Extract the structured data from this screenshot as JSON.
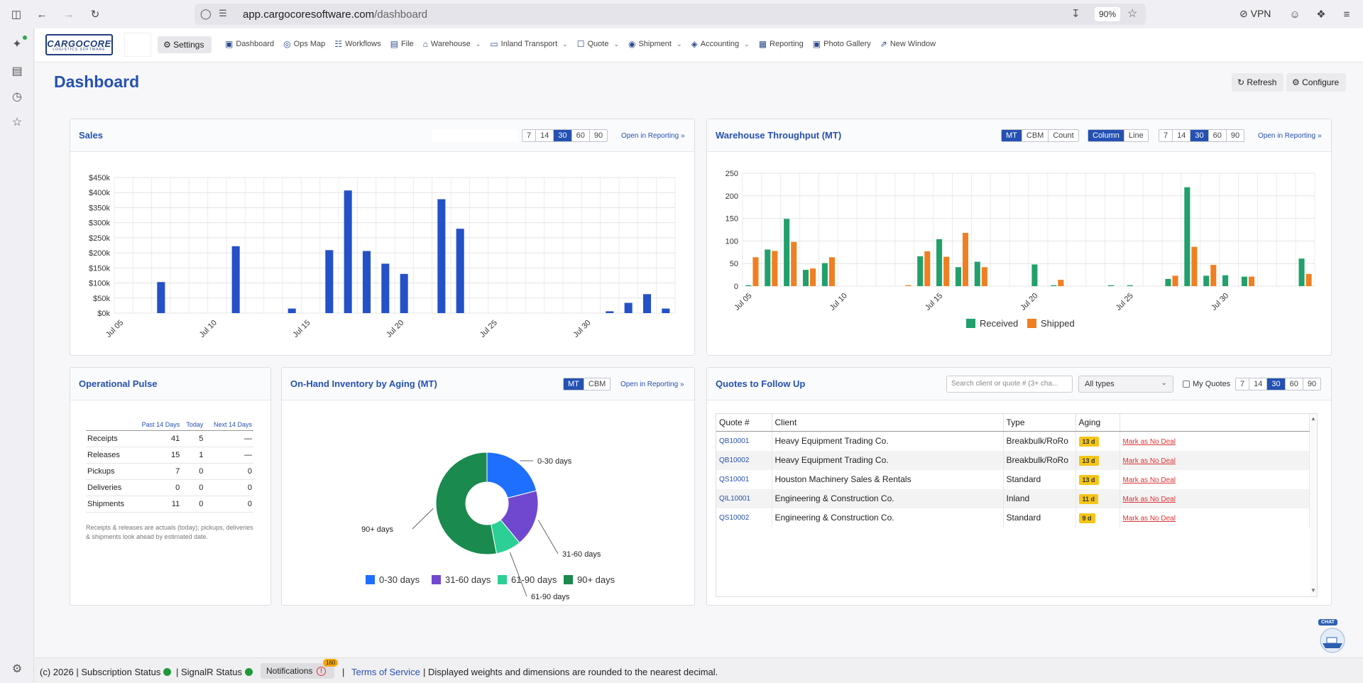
{
  "browser": {
    "url_host": "app.cargocoresoftware.com",
    "url_path": "/dashboard",
    "zoom": "90%",
    "vpn_label": "VPN"
  },
  "nav": {
    "logo_main": "CARGOCORE",
    "logo_sub": "LOGISTICS SOFTWARE",
    "settings_label": "Settings",
    "items": [
      {
        "label": "Dashboard",
        "icon": "monitor-icon",
        "dropdown": false
      },
      {
        "label": "Ops Map",
        "icon": "globe-icon",
        "dropdown": false
      },
      {
        "label": "Workflows",
        "icon": "workflow-icon",
        "dropdown": false
      },
      {
        "label": "File",
        "icon": "file-icon",
        "dropdown": false
      },
      {
        "label": "Warehouse",
        "icon": "warehouse-icon",
        "dropdown": true
      },
      {
        "label": "Inland Transport",
        "icon": "truck-icon",
        "dropdown": true
      },
      {
        "label": "Quote",
        "icon": "quote-icon",
        "dropdown": true
      },
      {
        "label": "Shipment",
        "icon": "ship-icon",
        "dropdown": true
      },
      {
        "label": "Accounting",
        "icon": "accounting-icon",
        "dropdown": true
      },
      {
        "label": "Reporting",
        "icon": "report-icon",
        "dropdown": false
      },
      {
        "label": "Photo Gallery",
        "icon": "camera-icon",
        "dropdown": false
      },
      {
        "label": "New Window",
        "icon": "external-icon",
        "dropdown": false
      }
    ]
  },
  "page": {
    "title": "Dashboard",
    "refresh_label": "Refresh",
    "configure_label": "Configure"
  },
  "sales": {
    "title": "Sales",
    "ranges": [
      "7",
      "14",
      "30",
      "60",
      "90"
    ],
    "active_range": "30",
    "open_link": "Open in Reporting »"
  },
  "warehouse": {
    "title": "Warehouse Throughput (MT)",
    "units": [
      "MT",
      "CBM",
      "Count"
    ],
    "active_unit": "MT",
    "modes": [
      "Column",
      "Line"
    ],
    "active_mode": "Column",
    "ranges": [
      "7",
      "14",
      "30",
      "60",
      "90"
    ],
    "active_range": "30",
    "open_link": "Open in Reporting »"
  },
  "pulse": {
    "title": "Operational Pulse",
    "columns": [
      "",
      "Past 14 Days",
      "Today",
      "Next 14 Days"
    ],
    "rows": [
      [
        "Receipts",
        "41",
        "5",
        "—"
      ],
      [
        "Releases",
        "15",
        "1",
        "—"
      ],
      [
        "Pickups",
        "7",
        "0",
        "0"
      ],
      [
        "Deliveries",
        "0",
        "0",
        "0"
      ],
      [
        "Shipments",
        "11",
        "0",
        "0"
      ]
    ],
    "note": "Receipts & releases are actuals (today); pickups, deliveries & shipments look ahead by estimated date."
  },
  "inventory": {
    "title": "On-Hand Inventory by Aging (MT)",
    "units": [
      "MT",
      "CBM"
    ],
    "active_unit": "MT",
    "open_link": "Open in Reporting »"
  },
  "quotes": {
    "title": "Quotes to Follow Up",
    "search_placeholder": "Search client or quote # (3+ cha...",
    "type_filter": "All types",
    "my_quotes_label": "My Quotes",
    "ranges": [
      "7",
      "14",
      "30",
      "60",
      "90"
    ],
    "active_range": "30",
    "columns": [
      "Quote #",
      "Client",
      "Type",
      "Aging",
      ""
    ],
    "rows": [
      {
        "quote": "QB10001",
        "client": "Heavy Equipment Trading Co.",
        "type": "Breakbulk/RoRo",
        "aging": "13 d",
        "action": "Mark as No Deal"
      },
      {
        "quote": "QB10002",
        "client": "Heavy Equipment Trading Co.",
        "type": "Breakbulk/RoRo",
        "aging": "13 d",
        "action": "Mark as No Deal"
      },
      {
        "quote": "QS10001",
        "client": "Houston Machinery Sales & Rentals",
        "type": "Standard",
        "aging": "13 d",
        "action": "Mark as No Deal"
      },
      {
        "quote": "QIL10001",
        "client": "Engineering & Construction Co.",
        "type": "Inland",
        "aging": "11 d",
        "action": "Mark as No Deal"
      },
      {
        "quote": "QS10002",
        "client": "Engineering & Construction Co.",
        "type": "Standard",
        "aging": "9 d",
        "action": "Mark as No Deal"
      }
    ]
  },
  "footer": {
    "copyright": "(c) 2026",
    "subscription_label": "| Subscription Status",
    "signalr_label": "| SignalR Status",
    "notifications_label": "Notifications",
    "notifications_count": "160",
    "terms_label": "Terms of Service",
    "disclaimer": "| Displayed weights and dimensions are rounded to the nearest decimal.",
    "chat_label": "CHAT"
  },
  "colors": {
    "accent": "#2451b2",
    "received": "#22a06b",
    "shipped": "#f07f22",
    "aging_0_30": "#1f6fff",
    "aging_31_60": "#7048d0",
    "aging_61_90": "#2ccf95",
    "aging_90_plus": "#1a8a4f",
    "badge": "#f5c518",
    "status_ok": "#1e9a3a"
  },
  "chart_data": [
    {
      "type": "bar",
      "title": "Sales",
      "x": [
        "Jul 05",
        "Jul 06",
        "Jul 07",
        "Jul 08",
        "Jul 09",
        "Jul 10",
        "Jul 11",
        "Jul 12",
        "Jul 13",
        "Jul 14",
        "Jul 15",
        "Jul 16",
        "Jul 17",
        "Jul 18",
        "Jul 19",
        "Jul 20",
        "Jul 21",
        "Jul 22",
        "Jul 23",
        "Jul 24",
        "Jul 25",
        "Jul 26",
        "Jul 27",
        "Jul 28",
        "Jul 29",
        "Jul 30",
        "Jul 31",
        "Aug 01",
        "Aug 02",
        "Aug 03"
      ],
      "xticks": [
        "Jul 05",
        "Jul 10",
        "Jul 15",
        "Jul 20",
        "Jul 25",
        "Jul 30"
      ],
      "values": [
        0,
        0,
        103000,
        0,
        0,
        0,
        222000,
        0,
        0,
        15000,
        0,
        209000,
        407000,
        206000,
        164000,
        130000,
        0,
        378000,
        280000,
        0,
        0,
        0,
        0,
        0,
        0,
        0,
        6000,
        34000,
        63000,
        15000
      ],
      "yticks": [
        "$0k",
        "$50k",
        "$100k",
        "$150k",
        "$200k",
        "$250k",
        "$300k",
        "$350k",
        "$400k",
        "$450k"
      ],
      "ylim": [
        0,
        450000
      ],
      "color": "#2451c7",
      "grid": true
    },
    {
      "type": "bar",
      "title": "Warehouse Throughput (MT)",
      "x": [
        "Jul 05",
        "Jul 06",
        "Jul 07",
        "Jul 08",
        "Jul 09",
        "Jul 10",
        "Jul 11",
        "Jul 12",
        "Jul 13",
        "Jul 14",
        "Jul 15",
        "Jul 16",
        "Jul 17",
        "Jul 18",
        "Jul 19",
        "Jul 20",
        "Jul 21",
        "Jul 22",
        "Jul 23",
        "Jul 24",
        "Jul 25",
        "Jul 26",
        "Jul 27",
        "Jul 28",
        "Jul 29",
        "Jul 30",
        "Jul 31",
        "Aug 01",
        "Aug 02",
        "Aug 03"
      ],
      "xticks": [
        "Jul 05",
        "Jul 10",
        "Jul 15",
        "Jul 20",
        "Jul 25",
        "Jul 30"
      ],
      "series": [
        {
          "name": "Received",
          "color": "#22a06b",
          "values": [
            2,
            81,
            149,
            36,
            51,
            0,
            0,
            0,
            0,
            66,
            104,
            42,
            54,
            0,
            0,
            48,
            2,
            0,
            0,
            2,
            2,
            0,
            16,
            219,
            23,
            24,
            21,
            0,
            0,
            61
          ]
        },
        {
          "name": "Shipped",
          "color": "#f07f22",
          "values": [
            64,
            78,
            98,
            39,
            64,
            0,
            0,
            0,
            2,
            77,
            65,
            118,
            42,
            0,
            0,
            0,
            14,
            0,
            0,
            0,
            0,
            0,
            23,
            87,
            47,
            0,
            21,
            0,
            0,
            27
          ]
        }
      ],
      "yticks": [
        "0",
        "50",
        "100",
        "150",
        "200",
        "250"
      ],
      "ylim": [
        0,
        250
      ],
      "legend": "bottom",
      "grid": true
    },
    {
      "type": "pie",
      "title": "On-Hand Inventory by Aging (MT)",
      "donut": true,
      "labels": [
        "0-30 days",
        "31-60 days",
        "61-90 days",
        "90+ days"
      ],
      "values": [
        21,
        18,
        8,
        53
      ],
      "colors": [
        "#1f6fff",
        "#7048d0",
        "#2ccf95",
        "#1a8a4f"
      ],
      "legend": "bottom"
    }
  ]
}
